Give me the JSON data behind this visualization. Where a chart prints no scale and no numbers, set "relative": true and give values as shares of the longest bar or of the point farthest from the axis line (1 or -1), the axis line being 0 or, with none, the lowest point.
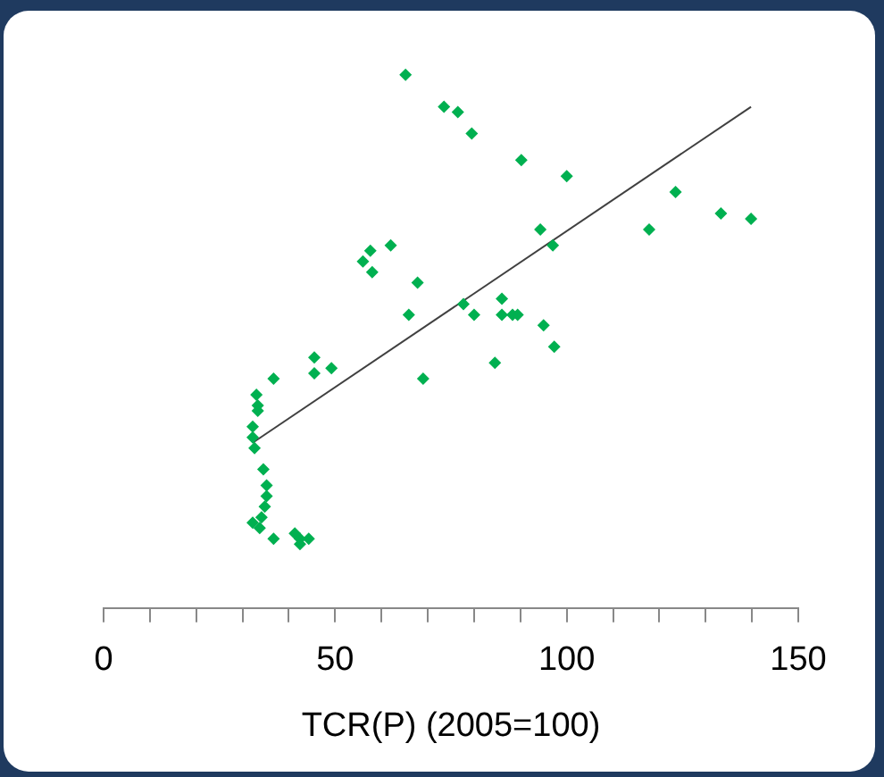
{
  "chart_data": {
    "type": "scatter",
    "xlabel": "TCR(P) (2005=100)",
    "relative": true,
    "marker": "diamond",
    "grid": false,
    "tick_labels": "x",
    "xlim": [
      0,
      150
    ],
    "xticks": [
      0,
      {
        "value": 10,
        "label": null
      },
      {
        "value": 20,
        "label": null
      },
      {
        "value": 30,
        "label": null
      },
      {
        "value": 40,
        "label": null
      },
      50,
      {
        "value": 60,
        "label": null
      },
      {
        "value": 70,
        "label": null
      },
      {
        "value": 80,
        "label": null
      },
      {
        "value": 90,
        "label": null
      },
      100,
      {
        "value": 110,
        "label": null
      },
      {
        "value": 120,
        "label": null
      },
      {
        "value": 130,
        "label": null
      },
      {
        "value": 140,
        "label": null
      },
      150
    ],
    "series": [
      {
        "color": "#00b050",
        "x": [
          65.2,
          73.5,
          76.5,
          79.5,
          90.2,
          100,
          123.5,
          133.3,
          139.8,
          117.8,
          94.3,
          97,
          62,
          57.6,
          56,
          58,
          67.8,
          65.9,
          77.7,
          80,
          86,
          86,
          88.3,
          89.4,
          95,
          97.3,
          84.5,
          69,
          45.5,
          45.5,
          49.2,
          36.7,
          33,
          33.3,
          33.3,
          32.2,
          32.2,
          32.6,
          34.5,
          35.2,
          35.2,
          34.8,
          34.1,
          32.2,
          33.7,
          36.7,
          41.3,
          42.4,
          44.3,
          42.4
        ],
        "values": [
          1.0,
          0.94,
          0.93,
          0.89,
          0.84,
          0.81,
          0.78,
          0.74,
          0.73,
          0.71,
          0.71,
          0.68,
          0.68,
          0.67,
          0.65,
          0.63,
          0.61,
          0.55,
          0.57,
          0.55,
          0.58,
          0.55,
          0.55,
          0.55,
          0.53,
          0.49,
          0.46,
          0.43,
          0.47,
          0.44,
          0.45,
          0.43,
          0.4,
          0.38,
          0.37,
          0.34,
          0.32,
          0.3,
          0.26,
          0.23,
          0.21,
          0.19,
          0.17,
          0.16,
          0.15,
          0.13,
          0.14,
          0.13,
          0.13,
          0.12
        ]
      },
      {
        "type": "line",
        "color": "#404040",
        "marker": "none",
        "x": [
          32.2,
          139.8
        ],
        "values": [
          0.31,
          0.94
        ]
      }
    ]
  }
}
